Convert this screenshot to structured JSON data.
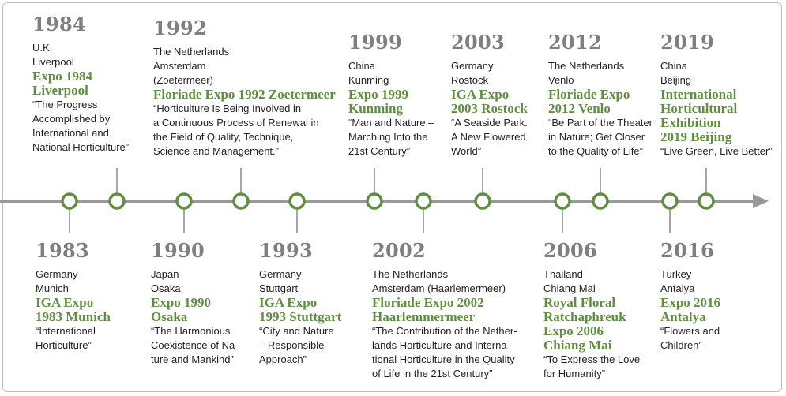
{
  "colors": {
    "accent": "#5e8f3e",
    "year": "#7f7f7f",
    "axis": "#999999"
  },
  "top": [
    {
      "year": "1984",
      "country": "U.K.",
      "city": [
        "Liverpool"
      ],
      "title": [
        "Expo 1984",
        "Liverpool"
      ],
      "quote": [
        "“The Progress",
        "Accomplished by",
        "International and",
        "National Horticulture”"
      ]
    },
    {
      "year": "1992",
      "country": "The Netherlands",
      "city": [
        "Amsterdam",
        "(Zoetermeer)"
      ],
      "title": [
        "Floriade Expo 1992 Zoetermeer"
      ],
      "quote": [
        "“Horticulture Is Being Involved in",
        "a Continuous Process of Renewal in",
        "the Field of Quality, Technique,",
        "Science and Management.”"
      ]
    },
    {
      "year": "1999",
      "country": "China",
      "city": [
        "Kunming"
      ],
      "title": [
        "Expo 1999",
        "Kunming"
      ],
      "quote": [
        "“Man and Nature –",
        "Marching Into the",
        "21st Century”"
      ]
    },
    {
      "year": "2003",
      "country": "Germany",
      "city": [
        "Rostock"
      ],
      "title": [
        "IGA Expo",
        "2003 Rostock"
      ],
      "quote": [
        "“A Seaside Park.",
        "A New Flowered",
        "World”"
      ]
    },
    {
      "year": "2012",
      "country": "The Netherlands",
      "city": [
        "Venlo"
      ],
      "title": [
        "Floriade Expo",
        "2012 Venlo"
      ],
      "quote": [
        "“Be Part of the Theater",
        "in Nature; Get Closer",
        "to the Quality of Life”"
      ]
    },
    {
      "year": "2019",
      "country": "China",
      "city": [
        "Beijing"
      ],
      "title": [
        "International",
        "Horticultural",
        "Exhibition",
        "2019 Beijing"
      ],
      "quote": [
        "“Live Green, Live Better”"
      ]
    }
  ],
  "bottom": [
    {
      "year": "1983",
      "country": "Germany",
      "city": [
        "Munich"
      ],
      "title": [
        "IGA Expo",
        "1983 Munich"
      ],
      "quote": [
        "“International",
        "Horticulture”"
      ]
    },
    {
      "year": "1990",
      "country": "Japan",
      "city": [
        "Osaka"
      ],
      "title": [
        "Expo 1990",
        "Osaka"
      ],
      "quote": [
        "“The Harmonious",
        "Coexistence of Na-",
        "ture and Mankind”"
      ]
    },
    {
      "year": "1993",
      "country": "Germany",
      "city": [
        "Stuttgart"
      ],
      "title": [
        "IGA Expo",
        "1993 Stuttgart"
      ],
      "quote": [
        "“City and Nature",
        "– Responsible",
        "Approach”"
      ]
    },
    {
      "year": "2002",
      "country": "The Netherlands",
      "city": [
        "Amsterdam (Haarlemermeer)"
      ],
      "title": [
        "Floriade Expo 2002",
        "Haarlemmermeer"
      ],
      "quote": [
        "“The Contribution of the Nether-",
        "lands Horticulture and Interna-",
        "tional Horticulture in the Quality",
        "of Life in the 21st Century”"
      ]
    },
    {
      "year": "2006",
      "country": "Thailand",
      "city": [
        "Chiang Mai"
      ],
      "title": [
        "Royal Floral",
        "Ratchaphreuk",
        "Expo 2006",
        "Chiang Mai"
      ],
      "quote": [
        "“To Express the Love",
        "for Humanity”"
      ]
    },
    {
      "year": "2016",
      "country": "Turkey",
      "city": [
        "Antalya"
      ],
      "title": [
        "Expo 2016",
        "Antalya"
      ],
      "quote": [
        "“Flowers and",
        "Children”"
      ]
    }
  ]
}
